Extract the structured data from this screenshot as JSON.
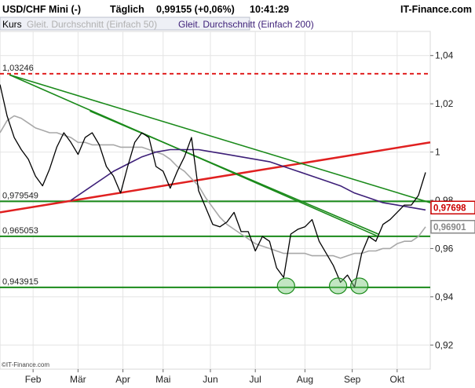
{
  "header": {
    "instrument": "USD/CHF Mini (-)",
    "interval": "Täglich",
    "quote": "0,99155 (+0,06%)",
    "time": "10:41:29",
    "brand": "IT-Finance.com"
  },
  "legend": {
    "items": [
      {
        "label": "Kurs",
        "color": "#000000"
      },
      {
        "label": "Gleit. Durchschnitt (Einfach 50)",
        "color": "#a8a8a8"
      },
      {
        "label": "Gleit. Durchschnitt (Einfach 200)",
        "color": "#3d1f78"
      }
    ]
  },
  "copyright": "©IT-Finance.com",
  "chart_data": {
    "type": "line",
    "title": "USD/CHF Mini (-)",
    "ylim": [
      0.91,
      1.05
    ],
    "yticks": [
      "1,04",
      "1,02",
      "1",
      "0,98",
      "0,96",
      "0,94",
      "0,92"
    ],
    "ytick_values": [
      1.04,
      1.02,
      1.0,
      0.98,
      0.96,
      0.94,
      0.92
    ],
    "xticks": [
      "Feb",
      "Mär",
      "Apr",
      "Mai",
      "Jun",
      "Jul",
      "Aug",
      "Sep",
      "Okt"
    ],
    "xtick_values": [
      14,
      33,
      52,
      69,
      89,
      108,
      129,
      149,
      168
    ],
    "xlim": [
      0,
      182
    ],
    "grid": true,
    "series": [
      {
        "name": "Kurs",
        "color": "#000000",
        "x": [
          0,
          3,
          6,
          9,
          12,
          15,
          18,
          21,
          24,
          27,
          30,
          33,
          36,
          39,
          42,
          45,
          48,
          51,
          54,
          57,
          60,
          63,
          66,
          69,
          72,
          75,
          78,
          81,
          84,
          87,
          90,
          93,
          96,
          99,
          102,
          105,
          108,
          111,
          114,
          117,
          120,
          123,
          126,
          129,
          132,
          135,
          138,
          141,
          144,
          147,
          150,
          153,
          156,
          159,
          162,
          165,
          168,
          171,
          174,
          177,
          180
        ],
        "y": [
          1.028,
          1.015,
          1.006,
          1.001,
          0.997,
          0.99,
          0.986,
          0.993,
          1.002,
          1.008,
          1.004,
          0.999,
          1.006,
          1.008,
          1.003,
          0.994,
          0.99,
          0.983,
          0.994,
          1.004,
          1.008,
          1.006,
          0.994,
          0.992,
          0.985,
          0.992,
          0.998,
          1.006,
          0.984,
          0.977,
          0.97,
          0.969,
          0.971,
          0.975,
          0.967,
          0.967,
          0.959,
          0.965,
          0.963,
          0.952,
          0.948,
          0.966,
          0.968,
          0.969,
          0.972,
          0.963,
          0.958,
          0.953,
          0.946,
          0.949,
          0.944,
          0.958,
          0.965,
          0.963,
          0.97,
          0.972,
          0.975,
          0.978,
          0.978,
          0.982,
          0.99155
        ]
      },
      {
        "name": "Gleit. Durchschnitt (Einfach 50)",
        "color": "#a8a8a8",
        "x": [
          0,
          3,
          6,
          9,
          12,
          15,
          18,
          21,
          24,
          27,
          30,
          33,
          36,
          39,
          42,
          45,
          48,
          51,
          54,
          57,
          60,
          63,
          66,
          69,
          72,
          75,
          78,
          81,
          84,
          87,
          90,
          93,
          96,
          99,
          102,
          105,
          108,
          111,
          114,
          117,
          120,
          123,
          126,
          129,
          132,
          135,
          138,
          141,
          144,
          147,
          150,
          153,
          156,
          159,
          162,
          165,
          168,
          171,
          174,
          177,
          180
        ],
        "y": [
          1.008,
          1.013,
          1.015,
          1.014,
          1.012,
          1.01,
          1.009,
          1.008,
          1.008,
          1.007,
          1.006,
          1.004,
          1.004,
          1.003,
          1.003,
          1.003,
          1.003,
          1.002,
          1.002,
          1.002,
          1.002,
          1.001,
          1.0,
          0.999,
          0.997,
          0.994,
          0.992,
          0.989,
          0.986,
          0.981,
          0.977,
          0.973,
          0.97,
          0.968,
          0.966,
          0.964,
          0.962,
          0.961,
          0.96,
          0.959,
          0.958,
          0.958,
          0.958,
          0.958,
          0.957,
          0.957,
          0.957,
          0.957,
          0.956,
          0.957,
          0.958,
          0.958,
          0.959,
          0.959,
          0.96,
          0.96,
          0.962,
          0.963,
          0.963,
          0.965,
          0.969
        ]
      },
      {
        "name": "Gleit. Durchschnitt (Einfach 200)",
        "color": "#3d1f78",
        "x": [
          30,
          36,
          42,
          48,
          54,
          60,
          66,
          72,
          78,
          84,
          90,
          96,
          102,
          108,
          114,
          120,
          126,
          132,
          138,
          144,
          150,
          156,
          162,
          168,
          174,
          180
        ],
        "y": [
          0.98,
          0.984,
          0.988,
          0.992,
          0.995,
          0.998,
          1.0,
          1.001,
          1.001,
          1.001,
          1.0,
          0.999,
          0.998,
          0.997,
          0.996,
          0.994,
          0.992,
          0.99,
          0.988,
          0.986,
          0.983,
          0.981,
          0.979,
          0.978,
          0.977,
          0.976
        ]
      }
    ],
    "levels": [
      {
        "label": "1,03246",
        "value": 1.03246,
        "color": "#e02020",
        "dashed": true
      },
      {
        "label": "0,979549",
        "value": 0.979549,
        "color": "#1a8a1a",
        "dashed": false
      },
      {
        "label": "0,965053",
        "value": 0.965053,
        "color": "#1a8a1a",
        "dashed": false
      },
      {
        "label": "0,943915",
        "value": 0.943915,
        "color": "#1a8a1a",
        "dashed": false
      }
    ],
    "trendlines": [
      {
        "x": [
          0,
          182
        ],
        "y": [
          0.975,
          1.004
        ],
        "color": "#e02020"
      },
      {
        "x": [
          4,
          182
        ],
        "y": [
          1.032,
          0.979
        ],
        "color": "#1a8a1a"
      },
      {
        "x": [
          4,
          160
        ],
        "y": [
          1.032,
          0.965
        ],
        "color": "#1a8a1a"
      },
      {
        "x": [
          38,
          160
        ],
        "y": [
          1.017,
          0.966
        ],
        "color": "#1a8a1a"
      }
    ],
    "markers": [
      {
        "x": 121,
        "y": 0.9445
      },
      {
        "x": 143,
        "y": 0.9445
      },
      {
        "x": 152,
        "y": 0.9445
      }
    ],
    "badges": [
      {
        "label": "0,97698",
        "value": 0.97698,
        "color": "#cc0000"
      },
      {
        "label": "0,96901",
        "value": 0.96901,
        "color": "#888888"
      }
    ]
  }
}
